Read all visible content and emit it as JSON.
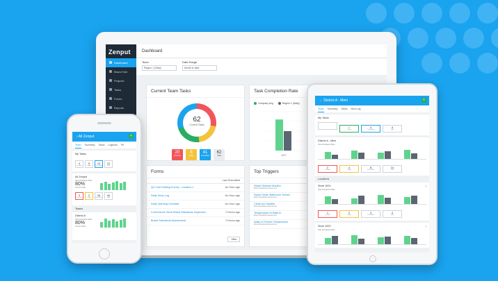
{
  "laptop": {
    "brand": "Zenput",
    "nav": [
      "Dashboard",
      "Brand Hub",
      "Projects",
      "Tasks",
      "Forms",
      "Reports",
      "Locations"
    ],
    "page_title": "Dashboard",
    "filters": [
      {
        "label": "Team",
        "value": "Region 1 (Sally)"
      },
      {
        "label": "Date Range",
        "value": "Month to date"
      }
    ],
    "current_team_tasks": {
      "title": "Current Team Tasks",
      "total": "62",
      "total_label": "Current Tasks",
      "stats": [
        {
          "value": "20",
          "label": "Overdue",
          "color": "#f2545b"
        },
        {
          "value": "8",
          "label": "Today",
          "color": "#f5c33b"
        },
        {
          "value": "41",
          "label": "This Week",
          "color": "#1aa3ef"
        },
        {
          "value": "62",
          "label": "Total",
          "color": "#e9edf1"
        }
      ]
    },
    "task_completion": {
      "title": "Task Completion Rate",
      "legend": [
        "Company Avg",
        "Region 1 (Sally)"
      ]
    },
    "forms": {
      "title": "Forms",
      "column": "Last Submitted",
      "rows": [
        {
          "name": "Q4 Cold Holding Survey - Location 1",
          "when": "An Hour ago"
        },
        {
          "name": "Daily Temp Log",
          "when": "An Hour ago"
        },
        {
          "name": "Daily Opening Checklist",
          "when": "An Hour ago"
        },
        {
          "name": "Cornerstone Store Brand Standards Inspection",
          "when": "2 Hours ago"
        },
        {
          "name": "Brand Standards Assessment",
          "when": "3 Hours ago"
        }
      ],
      "footer_btn": "View"
    },
    "top_triggers": {
      "title": "Top Triggers",
      "col1": "4/27",
      "col2": "5/4",
      "rows": [
        {
          "name": "Sweet Sweeze Monitor",
          "sub": "Brand Standards Assessment",
          "a": "3",
          "b": "4"
        },
        {
          "name": "Sweet Clean Bathroom Serves",
          "sub": "Brand Standards Assessment",
          "a": "2",
          "b": "3"
        },
        {
          "name": "Clean Ice Handler",
          "sub": "Brand Standards Assessment",
          "a": "3",
          "b": "4"
        },
        {
          "name": "Temperature of Walk-In",
          "sub": "Brand Standards Assessment",
          "a": "3",
          "b": "1"
        },
        {
          "name": "Walk-In Freezer Temperature",
          "sub": "Brand Standards Assessment",
          "a": "3",
          "b": "2"
        }
      ]
    }
  },
  "phone": {
    "header": "All Zenput",
    "tabs": [
      "Team",
      "Summary",
      "Tasks",
      "Logbook",
      "Pe"
    ],
    "my_tasks": {
      "title": "My Tasks",
      "cards": [
        {
          "value": "4",
          "label": "Overdue",
          "tone": ""
        },
        {
          "value": "5",
          "label": "Today",
          "tone": ""
        },
        {
          "value": "10",
          "label": "This Week",
          "tone": "b"
        },
        {
          "value": "12",
          "label": "Total",
          "tone": ""
        }
      ]
    },
    "all_zenput": {
      "title": "All Zenput",
      "rate_label": "Task Completion Rate",
      "rate": "80%",
      "current_label": "Current Tasks",
      "cards": [
        {
          "value": "3",
          "label": "Overdue",
          "tone": "r"
        },
        {
          "value": "2",
          "label": "Today",
          "tone": "y"
        },
        {
          "value": "20",
          "label": "This Week",
          "tone": ""
        },
        {
          "value": "40",
          "label": "Total",
          "tone": ""
        }
      ]
    },
    "teams": {
      "title": "Teams",
      "district": "District A",
      "rate_label": "Task Completion Rate",
      "rate": "80%",
      "current_label": "Current Tasks"
    }
  },
  "tablet": {
    "header": "District A - Mimi",
    "tabs": [
      "Team",
      "Summary",
      "Tasks",
      "Next Log"
    ],
    "my_tasks": {
      "title": "My Tasks",
      "cards": [
        {
          "value": "",
          "label": "",
          "tone": ""
        },
        {
          "value": "✓",
          "label": "Today",
          "tone": "g"
        },
        {
          "value": "4",
          "label": "This Week",
          "tone": "b"
        },
        {
          "value": "4",
          "label": "Total",
          "tone": ""
        }
      ]
    },
    "district": {
      "title": "District A - Mimi",
      "rate_label": "Task Completion Rate",
      "cards": [
        {
          "value": "2",
          "label": "Overdue",
          "tone": "r"
        },
        {
          "value": "4",
          "label": "Today",
          "tone": "y"
        },
        {
          "value": "8",
          "label": "This Week",
          "tone": ""
        },
        {
          "value": "14",
          "label": "Total",
          "tone": ""
        }
      ]
    },
    "locations_label": "Locations",
    "stores": [
      {
        "title": "Store 1001",
        "rate_label": "Task Completion Rate",
        "cards": [
          {
            "value": "1",
            "label": "Overdue",
            "tone": "r"
          },
          {
            "value": "2",
            "label": "Today",
            "tone": "y"
          },
          {
            "value": "4",
            "label": "This Week",
            "tone": ""
          },
          {
            "value": "4",
            "label": "Total",
            "tone": ""
          }
        ]
      },
      {
        "title": "Store 1002",
        "rate_label": "Task Completion Rate",
        "cards": []
      }
    ]
  },
  "chart_data": [
    {
      "type": "bar",
      "title": "Task Completion Rate",
      "categories": [
        "4/27",
        "5/4"
      ],
      "series": [
        {
          "name": "Company Avg",
          "values": [
            80,
            72
          ]
        },
        {
          "name": "Region 1 (Sally)",
          "values": [
            50,
            62
          ]
        }
      ],
      "ylim": [
        0,
        100
      ]
    }
  ],
  "colors": {
    "background": "#1aa3ef",
    "accent": "#1aa3ef",
    "green": "#27ae60",
    "sidebar": "#1f2a37"
  }
}
